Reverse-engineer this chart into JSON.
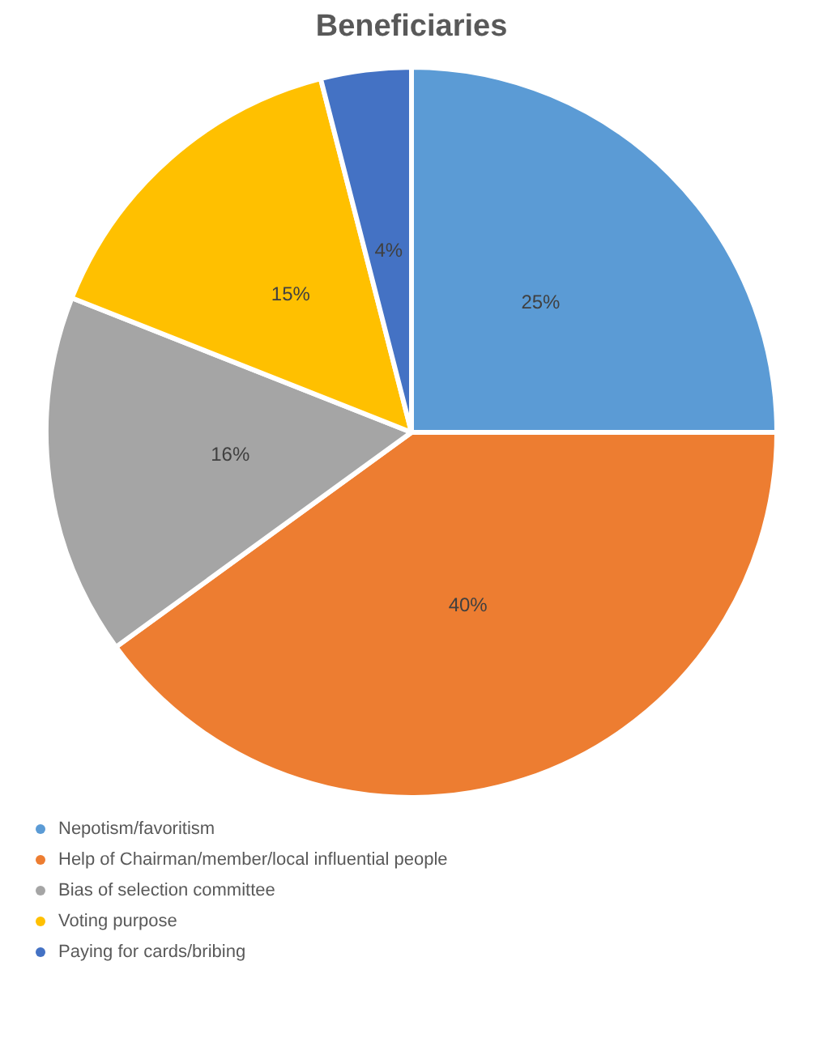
{
  "chart_data": {
    "type": "pie",
    "title": "Beneficiaries",
    "categories": [
      "Nepotism/favoritism",
      "Help of Chairman/member/local influential people",
      "Bias of selection committee",
      "Voting purpose",
      "Paying for cards/bribing"
    ],
    "values": [
      25,
      40,
      16,
      15,
      4
    ],
    "colors": [
      "#5b9bd5",
      "#ed7d31",
      "#a5a5a5",
      "#ffc000",
      "#4472c4"
    ],
    "value_labels": [
      "25%",
      "40%",
      "16%",
      "15%",
      "4%"
    ],
    "legend": "bottom"
  }
}
